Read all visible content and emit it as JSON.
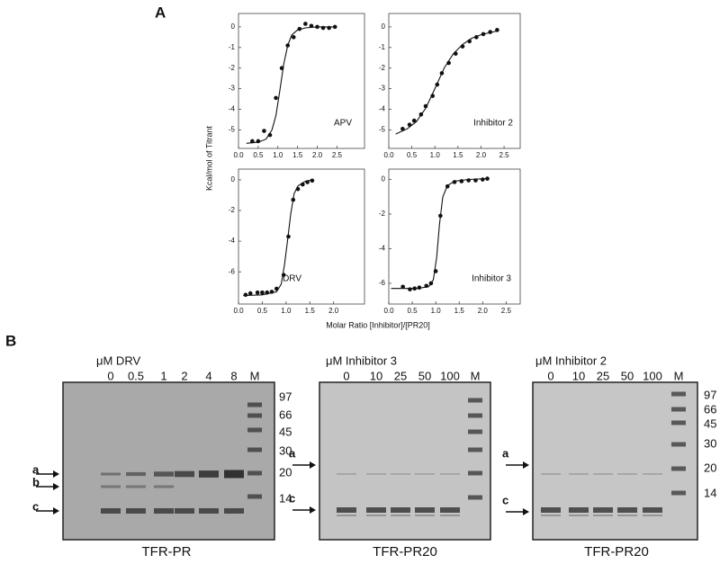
{
  "figure": {
    "panel_a": "A",
    "panel_b": "B",
    "y_label": "Kcal/mol of Titrant",
    "x_label": "Molar Ratio [Inhibitor]/[PR20]"
  },
  "chart_data": [
    {
      "type": "scatter",
      "annotation": "APV",
      "xlim": [
        0,
        3.2
      ],
      "ylim": [
        -5.9,
        0.65
      ],
      "xticks": [
        {
          "value": 0,
          "label": "0.0"
        },
        0.5,
        {
          "value": 1,
          "label": "1.0"
        },
        1.5,
        {
          "value": 2,
          "label": "2.0"
        },
        2.5
      ],
      "yticks": [
        0,
        -1,
        -2,
        -3,
        -4,
        -5
      ],
      "series": [
        {
          "type": "scatter",
          "color": "#111111",
          "x": [
            0.35,
            0.5,
            0.65,
            0.8,
            0.95,
            1.1,
            1.25,
            1.4,
            1.55,
            1.7,
            1.85,
            2.0,
            2.15,
            2.3,
            2.45
          ],
          "values": [
            -5.55,
            -5.55,
            -5.05,
            -5.25,
            -3.45,
            -2.0,
            -0.9,
            -0.5,
            -0.1,
            0.15,
            0.05,
            0.0,
            -0.05,
            -0.05,
            0.0
          ]
        },
        {
          "type": "line",
          "color": "#111111",
          "x": [
            0.2,
            0.5,
            0.7,
            0.85,
            0.95,
            1.05,
            1.15,
            1.25,
            1.35,
            1.5,
            1.7,
            2.0,
            2.5
          ],
          "values": [
            -5.65,
            -5.6,
            -5.45,
            -5.0,
            -4.3,
            -3.1,
            -1.8,
            -0.9,
            -0.4,
            -0.15,
            -0.05,
            0,
            0
          ]
        }
      ]
    },
    {
      "type": "scatter",
      "annotation": "Inhibitor 2",
      "xlim": [
        0,
        2.85
      ],
      "ylim": [
        -5.9,
        0.65
      ],
      "xticks": [
        {
          "value": 0,
          "label": "0.0"
        },
        0.5,
        {
          "value": 1,
          "label": "1.0"
        },
        1.5,
        {
          "value": 2,
          "label": "2.0"
        },
        2.5
      ],
      "yticks": [
        0,
        -1,
        -2,
        -3,
        -4,
        -5
      ],
      "series": [
        {
          "type": "scatter",
          "color": "#111111",
          "x": [
            0.3,
            0.45,
            0.55,
            0.7,
            0.8,
            0.95,
            1.05,
            1.15,
            1.3,
            1.45,
            1.6,
            1.75,
            1.9,
            2.05,
            2.2,
            2.35
          ],
          "values": [
            -4.95,
            -4.75,
            -4.55,
            -4.25,
            -3.85,
            -3.35,
            -2.8,
            -2.25,
            -1.75,
            -1.3,
            -0.95,
            -0.7,
            -0.5,
            -0.35,
            -0.25,
            -0.15
          ]
        },
        {
          "type": "line",
          "color": "#111111",
          "x": [
            0.15,
            0.4,
            0.6,
            0.8,
            1.0,
            1.2,
            1.4,
            1.6,
            1.8,
            2.0,
            2.2,
            2.35
          ],
          "values": [
            -5.2,
            -4.95,
            -4.6,
            -3.95,
            -3.0,
            -2.0,
            -1.3,
            -0.85,
            -0.55,
            -0.38,
            -0.27,
            -0.2
          ]
        }
      ]
    },
    {
      "type": "scatter",
      "annotation": "DRV",
      "xlim": [
        0,
        2.65
      ],
      "ylim": [
        -8.1,
        0.7
      ],
      "xticks": [
        {
          "value": 0,
          "label": "0.0"
        },
        0.5,
        {
          "value": 1,
          "label": "1.0"
        },
        1.5,
        {
          "value": 2,
          "label": "2.0"
        }
      ],
      "yticks": [
        0,
        -2,
        -4,
        -6
      ],
      "series": [
        {
          "type": "scatter",
          "color": "#111111",
          "x": [
            0.15,
            0.25,
            0.4,
            0.5,
            0.6,
            0.7,
            0.8,
            0.95,
            1.05,
            1.15,
            1.25,
            1.35,
            1.45,
            1.55
          ],
          "values": [
            -7.5,
            -7.4,
            -7.35,
            -7.35,
            -7.35,
            -7.3,
            -7.1,
            -6.2,
            -3.7,
            -1.3,
            -0.6,
            -0.3,
            -0.15,
            -0.05
          ]
        },
        {
          "type": "line",
          "color": "#111111",
          "x": [
            0.1,
            0.5,
            0.8,
            0.9,
            0.97,
            1.03,
            1.1,
            1.17,
            1.25,
            1.4,
            1.55
          ],
          "values": [
            -7.55,
            -7.5,
            -7.3,
            -6.8,
            -5.5,
            -4.0,
            -2.2,
            -0.9,
            -0.4,
            -0.1,
            0
          ]
        }
      ]
    },
    {
      "type": "scatter",
      "annotation": "Inhibitor 3",
      "xlim": [
        0,
        2.8
      ],
      "ylim": [
        -7.2,
        0.6
      ],
      "xticks": [
        {
          "value": 0,
          "label": "0.0"
        },
        0.5,
        {
          "value": 1,
          "label": "1.0"
        },
        1.5,
        {
          "value": 2,
          "label": "2.0"
        },
        2.5
      ],
      "yticks": [
        0,
        -2,
        -4,
        -6
      ],
      "series": [
        {
          "type": "scatter",
          "color": "#111111",
          "x": [
            0.3,
            0.45,
            0.55,
            0.65,
            0.8,
            0.9,
            1.0,
            1.1,
            1.25,
            1.4,
            1.55,
            1.7,
            1.85,
            2.0,
            2.1
          ],
          "values": [
            -6.2,
            -6.35,
            -6.3,
            -6.25,
            -6.15,
            -6.0,
            -5.3,
            -2.1,
            -0.4,
            -0.15,
            -0.1,
            -0.05,
            -0.05,
            0.0,
            0.05
          ]
        },
        {
          "type": "line",
          "color": "#111111",
          "x": [
            0.05,
            0.6,
            0.85,
            0.95,
            1.02,
            1.08,
            1.15,
            1.25,
            1.4,
            1.7,
            2.1
          ],
          "values": [
            -6.3,
            -6.3,
            -6.2,
            -5.8,
            -4.5,
            -2.6,
            -1.0,
            -0.35,
            -0.1,
            0,
            0.05
          ]
        }
      ]
    }
  ],
  "gels": [
    {
      "header": "μM DRV",
      "lanes": [
        "0",
        "0.5",
        "1",
        "2",
        "4",
        "8",
        "M"
      ],
      "markers": [
        "97",
        "66",
        "45",
        "30",
        "20",
        "14"
      ],
      "arrows": [
        "a",
        "b",
        "c"
      ],
      "caption": "TFR-PR"
    },
    {
      "header": "μM Inhibitor 3",
      "lanes": [
        "0",
        "10",
        "25",
        "50",
        "100",
        "M"
      ],
      "arrows": [
        "a",
        "c"
      ],
      "caption": "TFR-PR20"
    },
    {
      "header": "μM Inhibitor 2",
      "lanes": [
        "0",
        "10",
        "25",
        "50",
        "100",
        "M"
      ],
      "markers": [
        "97",
        "66",
        "45",
        "30",
        "20",
        "14"
      ],
      "arrows": [
        "a",
        "c"
      ],
      "caption": "TFR-PR20"
    }
  ]
}
